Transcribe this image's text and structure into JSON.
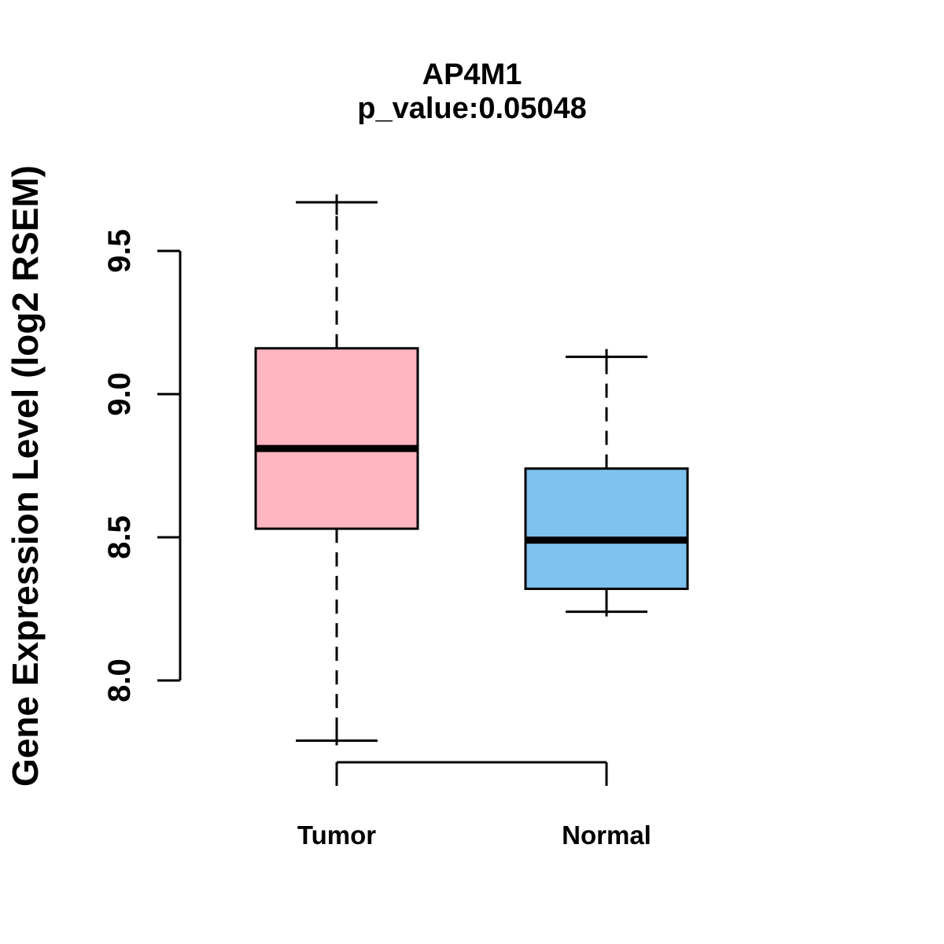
{
  "chart_data": {
    "type": "boxplot",
    "title": "AP4M1",
    "subtitle": "p_value:0.05048",
    "ylabel": "Gene Expression Level (log2 RSEM)",
    "xlabel": "",
    "categories": [
      "Tumor",
      "Normal"
    ],
    "series": [
      {
        "name": "Tumor",
        "color": "#FFB6C1",
        "whisker_low": 7.79,
        "q1": 8.53,
        "median": 8.81,
        "q3": 9.16,
        "whisker_high": 9.67
      },
      {
        "name": "Normal",
        "color": "#7EC0EE",
        "whisker_low": 8.24,
        "q1": 8.32,
        "median": 8.49,
        "q3": 8.74,
        "whisker_high": 9.13
      }
    ],
    "ytick_labels": [
      "8.0",
      "8.5",
      "9.0",
      "9.5"
    ],
    "ytick_values": [
      8.0,
      8.5,
      9.0,
      9.5
    ],
    "ylim": [
      7.7,
      9.7
    ],
    "grid": false,
    "legend": null,
    "bracket_between": [
      "Tumor",
      "Normal"
    ],
    "line_color": "#000000",
    "background": "#FFFFFF"
  }
}
